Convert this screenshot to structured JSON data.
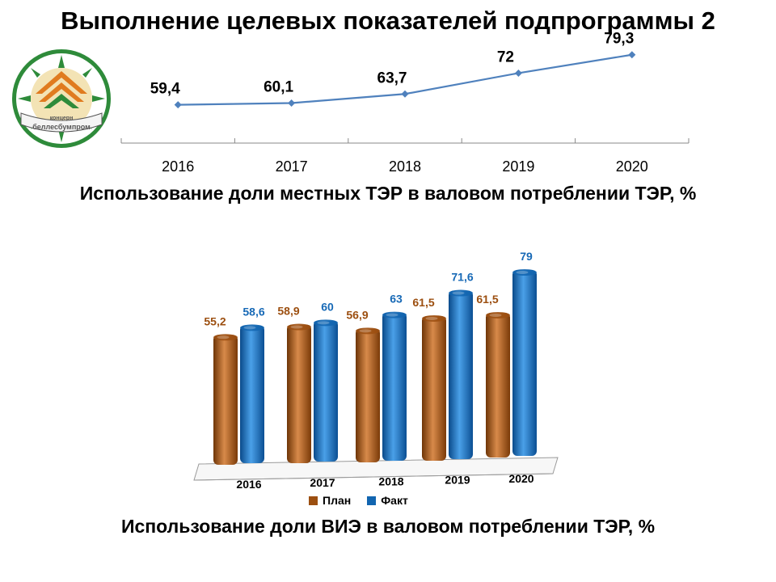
{
  "title": "Выполнение целевых показателей подпрограммы 2",
  "logo": {
    "top_text": "концерн",
    "bottom_text": "беллесбумпром"
  },
  "colors": {
    "line": "#4f81bd",
    "plan": "#9c4f10",
    "plan_light": "#d88a4a",
    "fact": "#1265b0",
    "fact_light": "#4aa0e8",
    "plan_label": "#9c4f10",
    "fact_label": "#1769b6"
  },
  "chart_data": [
    {
      "type": "line",
      "title": "Использование доли местных ТЭР в валовом потреблении ТЭР, %",
      "categories": [
        "2016",
        "2017",
        "2018",
        "2019",
        "2020"
      ],
      "series": [
        {
          "values": [
            59.4,
            60.1,
            63.7,
            72,
            79.3
          ],
          "labels": [
            "59,4",
            "60,1",
            "63,7",
            "72",
            "79,3"
          ]
        }
      ],
      "ylim": [
        40,
        85
      ],
      "grid": false
    },
    {
      "type": "bar",
      "title": "Использование доли ВИЭ в валовом потреблении ТЭР, %",
      "categories": [
        "2016",
        "2017",
        "2018",
        "2019",
        "2020"
      ],
      "series": [
        {
          "name": "План",
          "values": [
            55.2,
            58.9,
            56.9,
            61.5,
            61.5
          ],
          "labels": [
            "55,2",
            "58,9",
            "56,9",
            "61,5",
            "61,5"
          ]
        },
        {
          "name": "Факт",
          "values": [
            58.6,
            60,
            63,
            71.6,
            79
          ],
          "labels": [
            "58,6",
            "60",
            "63",
            "71,6",
            "79"
          ]
        }
      ],
      "ylim": [
        0,
        79
      ],
      "legend": "bottom",
      "grid": false
    }
  ]
}
